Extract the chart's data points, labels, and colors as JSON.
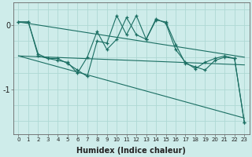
{
  "xlabel": "Humidex (Indice chaleur)",
  "ylabel": "",
  "bg_color": "#ceecea",
  "grid_color": "#aed8d4",
  "line_color": "#1a6e62",
  "x_ticks": [
    0,
    1,
    2,
    3,
    4,
    5,
    6,
    7,
    8,
    9,
    10,
    11,
    12,
    13,
    14,
    15,
    16,
    17,
    18,
    19,
    20,
    21,
    22,
    23
  ],
  "y_ticks": [
    0,
    -1
  ],
  "ylim": [
    -1.7,
    0.35
  ],
  "xlim": [
    -0.5,
    23.5
  ],
  "series1_x": [
    0,
    1,
    2,
    3,
    4,
    5,
    6,
    7,
    8,
    9,
    10,
    11,
    12,
    13,
    14,
    15,
    16,
    17,
    18,
    19,
    20,
    21,
    22,
    23
  ],
  "series1_y": [
    0.05,
    0.05,
    -0.45,
    -0.52,
    -0.55,
    -0.58,
    -0.75,
    -0.5,
    -0.1,
    -0.38,
    -0.22,
    0.12,
    -0.15,
    -0.22,
    0.08,
    0.05,
    -0.3,
    -0.6,
    -0.65,
    -0.7,
    -0.55,
    -0.5,
    -0.52,
    -1.52
  ],
  "series2_x": [
    0,
    1,
    2,
    3,
    4,
    5,
    6,
    7,
    8,
    9,
    10,
    11,
    12,
    13,
    14,
    15,
    16,
    17,
    18,
    19,
    20,
    21,
    22,
    23
  ],
  "series2_y": [
    0.05,
    0.05,
    -0.48,
    -0.52,
    -0.52,
    -0.6,
    -0.7,
    -0.8,
    -0.25,
    -0.28,
    0.15,
    -0.15,
    0.15,
    -0.22,
    0.1,
    0.03,
    -0.38,
    -0.58,
    -0.68,
    -0.58,
    -0.52,
    -0.48,
    -0.52,
    -1.52
  ],
  "trend1_x": [
    0,
    23
  ],
  "trend1_y": [
    0.05,
    -0.5
  ],
  "trend2_x": [
    0,
    23
  ],
  "trend2_y": [
    -0.48,
    -0.62
  ],
  "trend3_x": [
    0,
    23
  ],
  "trend3_y": [
    -0.48,
    -1.45
  ]
}
